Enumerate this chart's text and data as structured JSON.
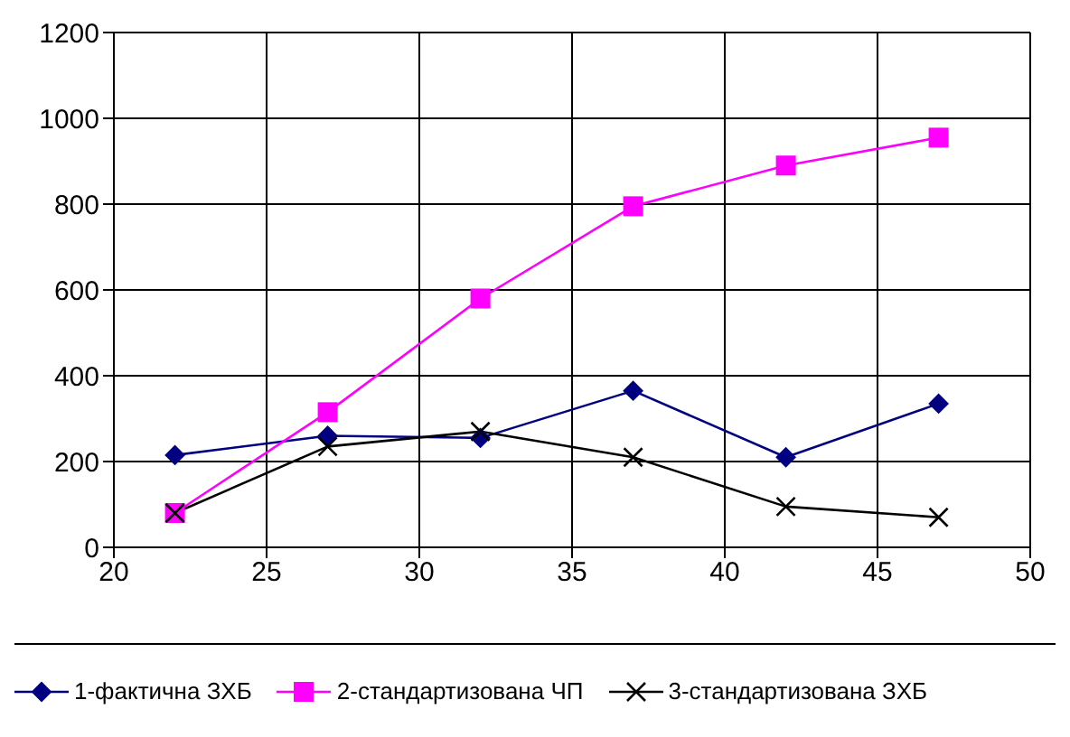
{
  "chart_data": {
    "type": "line",
    "x": [
      22,
      27,
      32,
      37,
      42,
      47
    ],
    "series": [
      {
        "name": "1-фактична ЗХБ",
        "color": "#000080",
        "marker": "diamond",
        "values": [
          215,
          260,
          255,
          365,
          210,
          335
        ]
      },
      {
        "name": "2-стандартизована ЧП",
        "color": "#ff00ff",
        "marker": "square",
        "values": [
          80,
          315,
          580,
          795,
          890,
          955
        ]
      },
      {
        "name": "3-стандартизована ЗХБ",
        "color": "#000000",
        "marker": "cross",
        "values": [
          80,
          235,
          270,
          210,
          95,
          70
        ]
      }
    ],
    "xlim": [
      20,
      50
    ],
    "xticks": [
      20,
      25,
      30,
      35,
      40,
      45,
      50
    ],
    "ylim": [
      0,
      1200
    ],
    "yticks": [
      0,
      200,
      400,
      600,
      800,
      1000,
      1200
    ],
    "grid": true,
    "legend": "bottom",
    "line_style": "solid"
  }
}
